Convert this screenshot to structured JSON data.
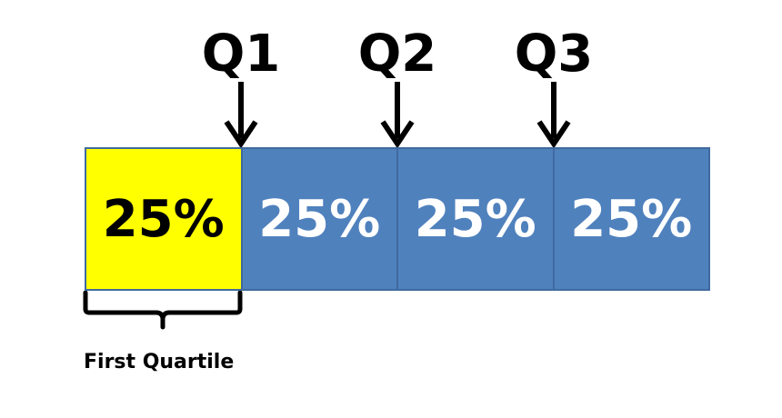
{
  "markers": [
    {
      "label": "Q1"
    },
    {
      "label": "Q2"
    },
    {
      "label": "Q3"
    }
  ],
  "segments": [
    {
      "label": "25%",
      "fill": "#ffff00",
      "text_color": "#000000"
    },
    {
      "label": "25%",
      "fill": "#4f81bd",
      "text_color": "#ffffff"
    },
    {
      "label": "25%",
      "fill": "#4f81bd",
      "text_color": "#ffffff"
    },
    {
      "label": "25%",
      "fill": "#4f81bd",
      "text_color": "#ffffff"
    }
  ],
  "brace": {
    "caption": "First Quartile"
  },
  "colors": {
    "highlight": "#ffff00",
    "segment_blue": "#4f81bd",
    "segment_border": "#3f6a9f",
    "ink": "#000000"
  }
}
